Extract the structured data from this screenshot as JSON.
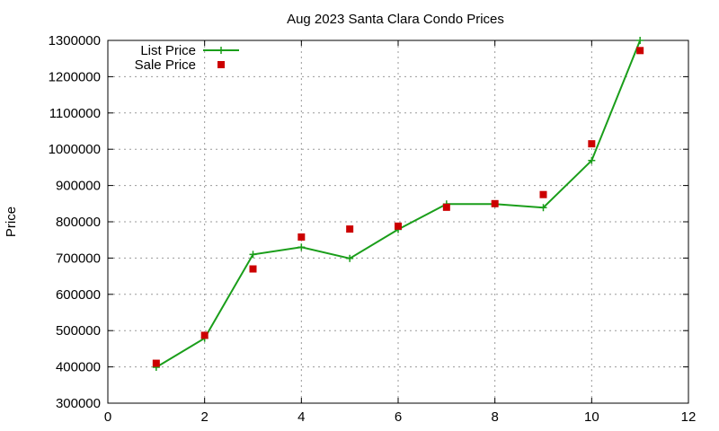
{
  "chart_data": {
    "type": "line",
    "title": "Aug 2023 Santa Clara Condo Prices",
    "xlabel": "",
    "ylabel": "Price",
    "xlim": [
      0,
      12
    ],
    "ylim": [
      300000,
      1300000
    ],
    "xticks": [
      0,
      2,
      4,
      6,
      8,
      10,
      12
    ],
    "yticks": [
      300000,
      400000,
      500000,
      600000,
      700000,
      800000,
      900000,
      1000000,
      1100000,
      1200000,
      1300000
    ],
    "grid": true,
    "legend_position": "top-left",
    "series": [
      {
        "name": "List Price",
        "style": "linespoints",
        "marker": "plus",
        "color": "#1a9e1a",
        "x": [
          1,
          2,
          3,
          4,
          5,
          6,
          7,
          8,
          9,
          10,
          11
        ],
        "y": [
          399000,
          479000,
          710000,
          730000,
          699000,
          779000,
          849000,
          849000,
          839000,
          969000,
          1300000
        ]
      },
      {
        "name": "Sale Price",
        "style": "points",
        "marker": "square",
        "color": "#cc0000",
        "x": [
          1,
          2,
          3,
          4,
          5,
          6,
          7,
          8,
          9,
          10,
          11
        ],
        "y": [
          410000,
          487000,
          670000,
          758000,
          780000,
          788000,
          840000,
          850000,
          875000,
          1015000,
          1272000
        ]
      }
    ]
  }
}
